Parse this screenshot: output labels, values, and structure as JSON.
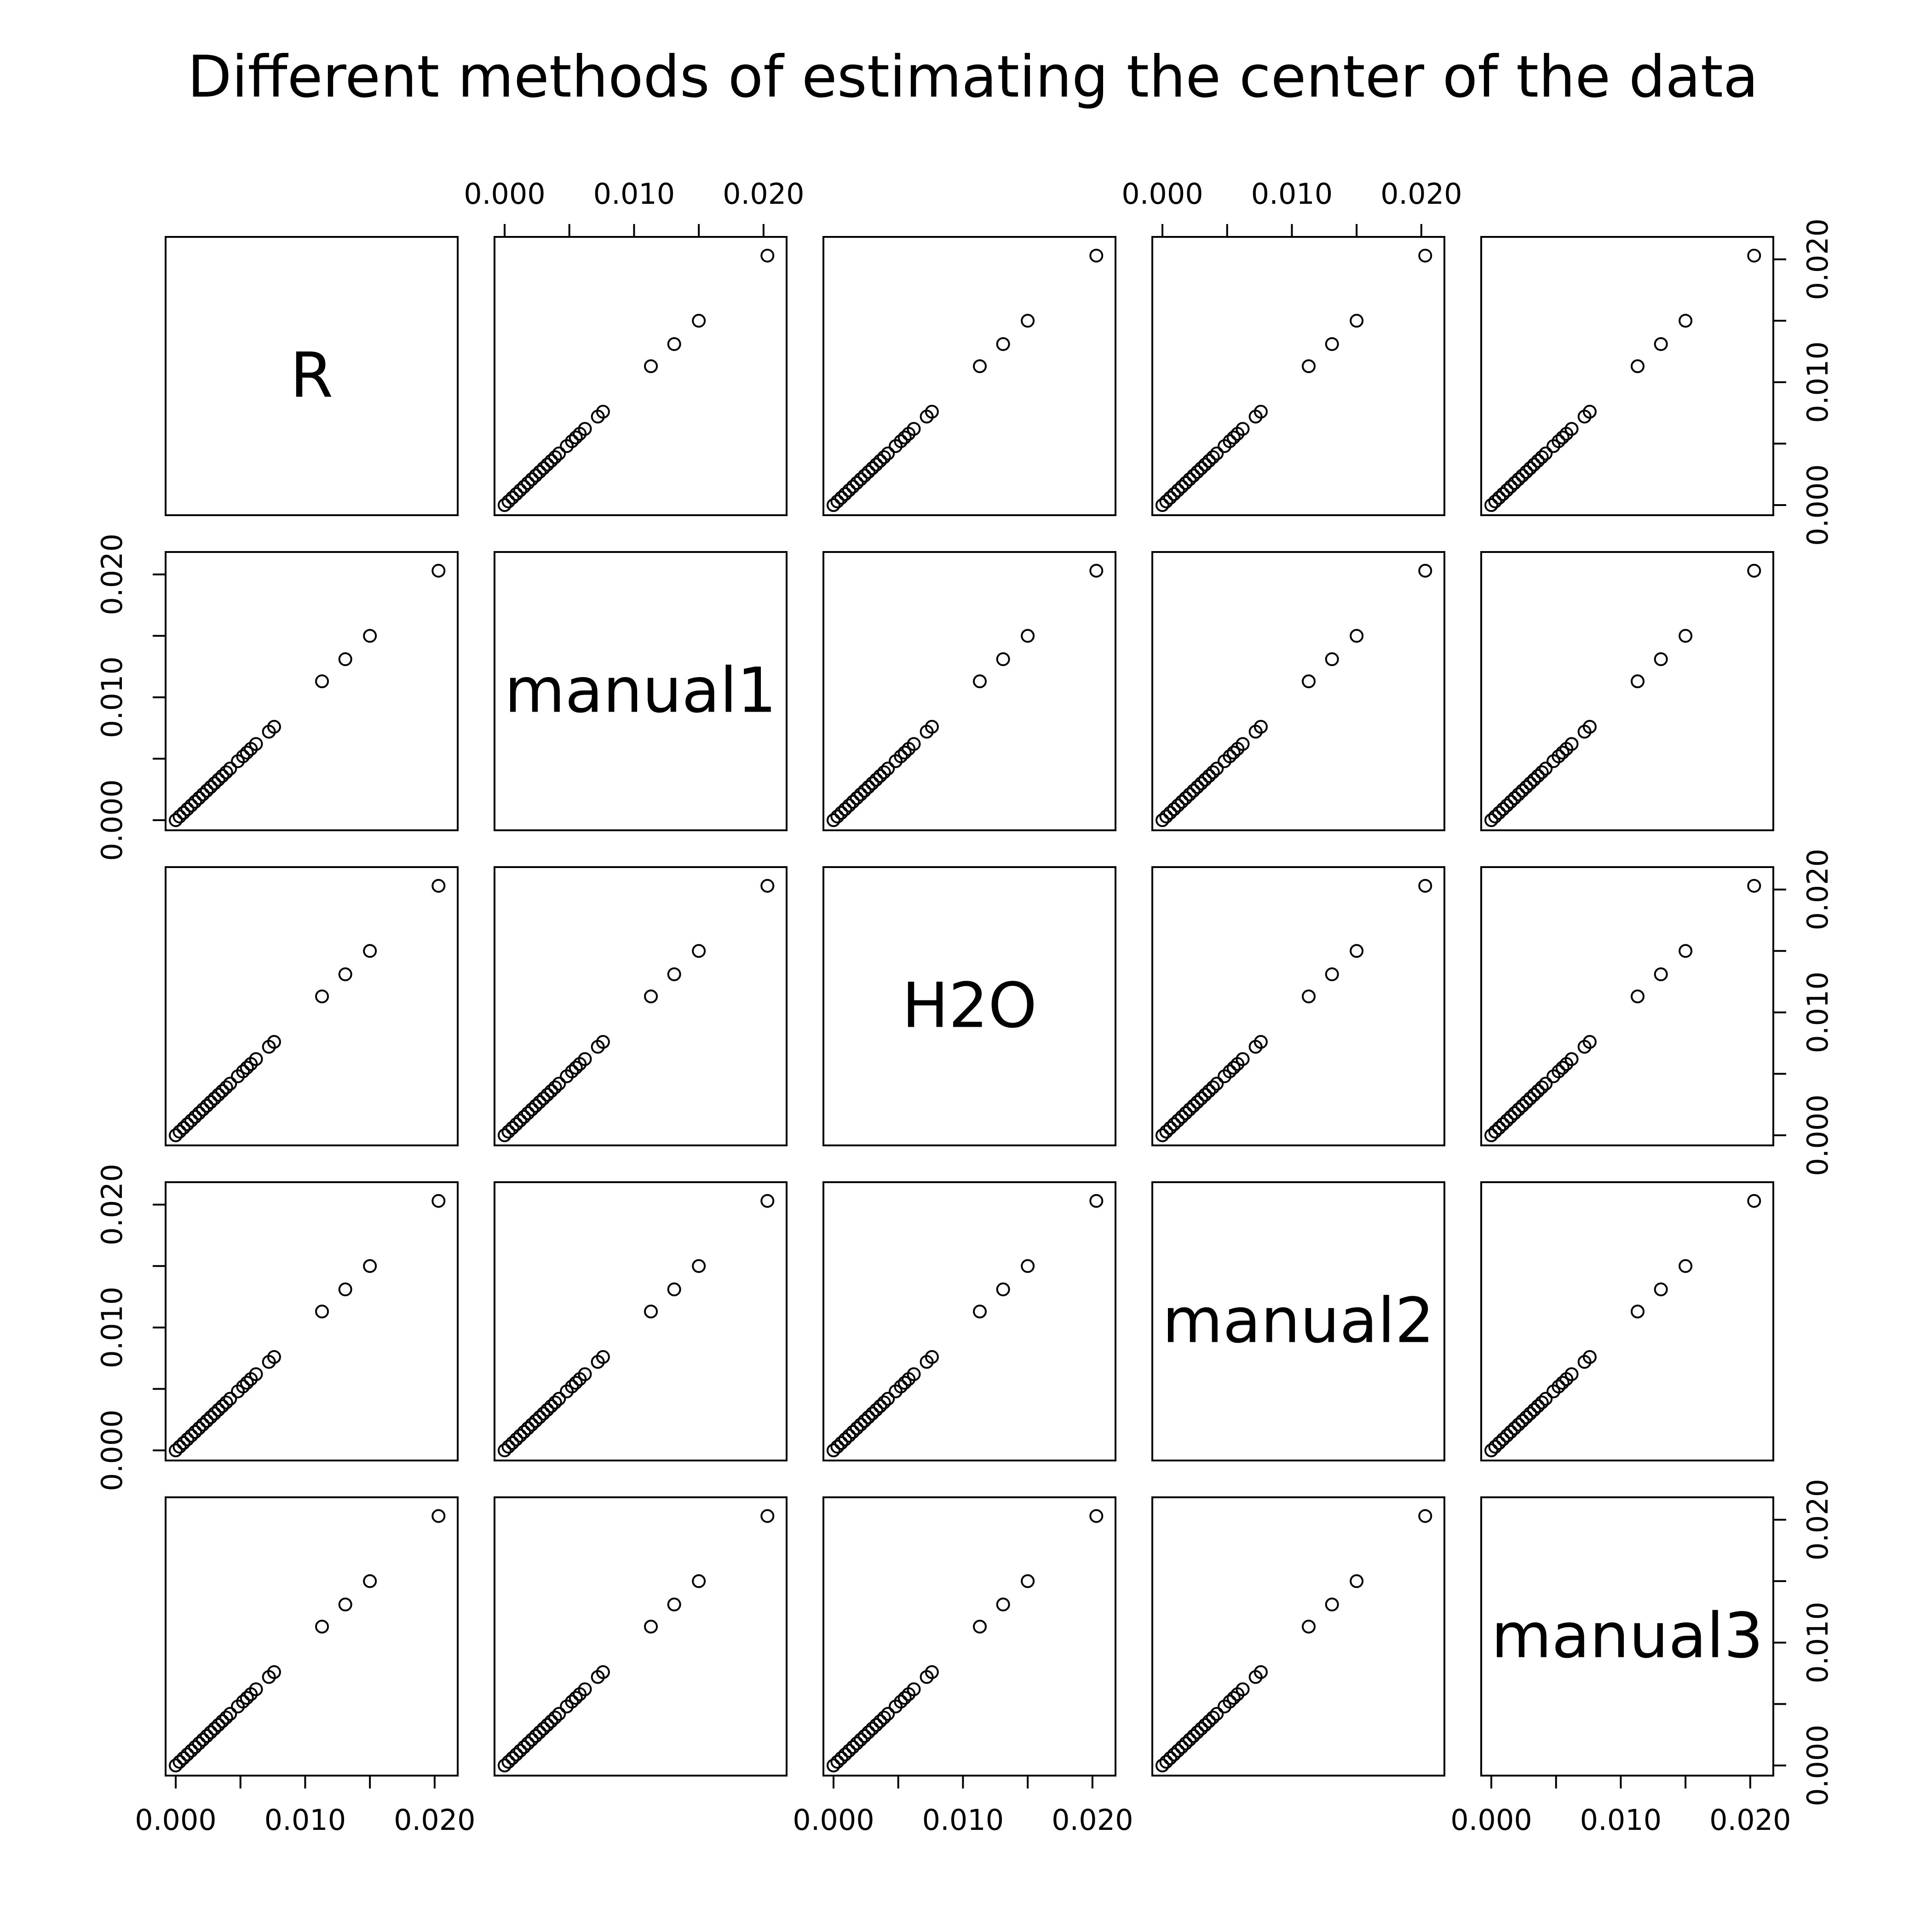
{
  "chart_data": {
    "type": "scatter",
    "title": "Different methods of estimating the center of the data",
    "variables": [
      "R",
      "manual1",
      "H2O",
      "manual2",
      "manual3"
    ],
    "axis_range": [
      0.0,
      0.021
    ],
    "tick_values": [
      0.0,
      0.005,
      0.01,
      0.015,
      0.02
    ],
    "tick_labels": [
      "0.000",
      "",
      "0.010",
      "",
      "0.020"
    ],
    "grid": false,
    "legend": "none",
    "point_style": "open-circle",
    "values": [
      0.0,
      0.0003,
      0.0006,
      0.0009,
      0.0012,
      0.0015,
      0.0018,
      0.0021,
      0.0024,
      0.0027,
      0.003,
      0.0033,
      0.0036,
      0.0039,
      0.0042,
      0.0048,
      0.0052,
      0.0055,
      0.0058,
      0.0062,
      0.0072,
      0.0076,
      0.0113,
      0.0131,
      0.015,
      0.0203
    ],
    "note_values": "All five variables contain identical values, so every off-diagonal panel shows the same points along the identity line."
  }
}
